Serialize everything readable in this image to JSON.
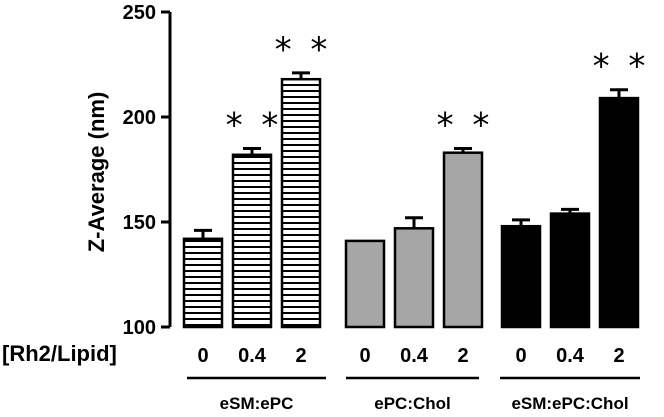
{
  "chart_data": {
    "type": "bar",
    "title": "",
    "ylabel": "Z-Average (nm)",
    "xlabel": "[Rh2/Lipid]",
    "ylim": [
      100,
      250
    ],
    "yticks": [
      100,
      150,
      200,
      250
    ],
    "groups": [
      {
        "name": "eSM:ePC",
        "pattern": "horizontal-stripes",
        "categories": [
          "0",
          "0.4",
          "2"
        ],
        "values": [
          142,
          182,
          218
        ],
        "errors": [
          4,
          3,
          3
        ],
        "annotations": [
          "",
          "**",
          "**"
        ]
      },
      {
        "name": "ePC:Chol",
        "pattern": "gray",
        "categories": [
          "0",
          "0.4",
          "2"
        ],
        "values": [
          141,
          147,
          183
        ],
        "errors": [
          0,
          5,
          2
        ],
        "annotations": [
          "",
          "",
          "**"
        ]
      },
      {
        "name": "eSM:ePC:Chol",
        "pattern": "black",
        "categories": [
          "0",
          "0.4",
          "2"
        ],
        "values": [
          148,
          154,
          209
        ],
        "errors": [
          3,
          2,
          4
        ],
        "annotations": [
          "",
          "",
          "**"
        ]
      }
    ],
    "colors": {
      "gray": "#a6a6a6",
      "black": "#000000",
      "stripe": "#000000"
    },
    "grid": false,
    "legend": "none"
  }
}
